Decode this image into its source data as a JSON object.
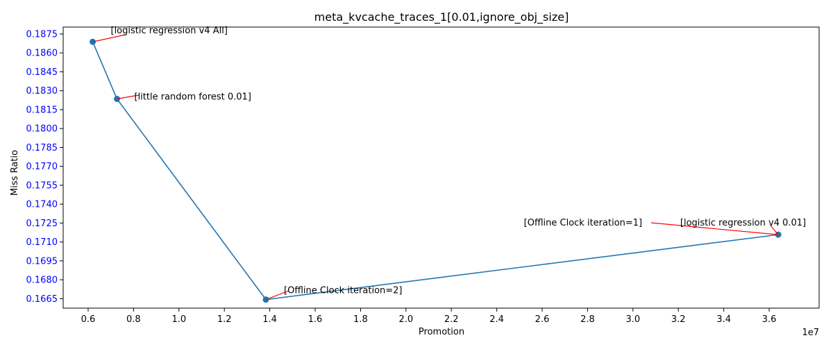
{
  "chart_data": {
    "type": "line",
    "title": "meta_kvcache_traces_1[0.01,ignore_obj_size]",
    "xlabel": "Promotion",
    "ylabel": "Miss Ratio",
    "x_offset_text": "1e7",
    "xlim": [
      4900000,
      38200000
    ],
    "ylim": [
      0.16575,
      0.18805
    ],
    "x_ticks": [
      6000000,
      8000000,
      10000000,
      12000000,
      14000000,
      16000000,
      18000000,
      20000000,
      22000000,
      24000000,
      26000000,
      28000000,
      30000000,
      32000000,
      34000000,
      36000000
    ],
    "x_tick_labels": [
      "0.6",
      "0.8",
      "1.0",
      "1.2",
      "1.4",
      "1.6",
      "1.8",
      "2.0",
      "2.2",
      "2.4",
      "2.6",
      "2.8",
      "3.0",
      "3.2",
      "3.4",
      "3.6"
    ],
    "y_ticks": [
      0.1665,
      0.168,
      0.1695,
      0.171,
      0.1725,
      0.174,
      0.1755,
      0.177,
      0.1785,
      0.18,
      0.1815,
      0.183,
      0.1845,
      0.186,
      0.1875
    ],
    "y_tick_labels": [
      "0.1665",
      "0.1680",
      "0.1695",
      "0.1710",
      "0.1725",
      "0.1740",
      "0.1755",
      "0.1770",
      "0.1785",
      "0.1800",
      "0.1815",
      "0.1830",
      "0.1845",
      "0.1860",
      "0.1875"
    ],
    "y_tick_color": "#0000ff",
    "series": [
      {
        "color": "#1f77b4",
        "marker": "circle",
        "x": [
          6200000,
          7270000,
          13830000,
          36400000
        ],
        "y": [
          0.18688,
          0.18235,
          0.16643,
          0.17158
        ]
      }
    ],
    "annotations": [
      {
        "text": "[logistic regression v4 All]",
        "x": 6200000,
        "y": 0.18688,
        "arrow_color": "#ff0000"
      },
      {
        "text": "[little random forest 0.01]",
        "x": 7270000,
        "y": 0.18235,
        "arrow_color": "#ff0000"
      },
      {
        "text": "[Offline Clock iteration=2]",
        "x": 13830000,
        "y": 0.16643,
        "arrow_color": "#ff0000"
      },
      {
        "text": "[Offline Clock iteration=1]",
        "x": 36400000,
        "y": 0.17158,
        "arrow_color": "#ff0000"
      },
      {
        "text": "[logistic regression v4 0.01]",
        "x": 36400000,
        "y": 0.17158,
        "arrow_color": "#ff0000"
      }
    ],
    "grid": false,
    "legend": "none"
  }
}
